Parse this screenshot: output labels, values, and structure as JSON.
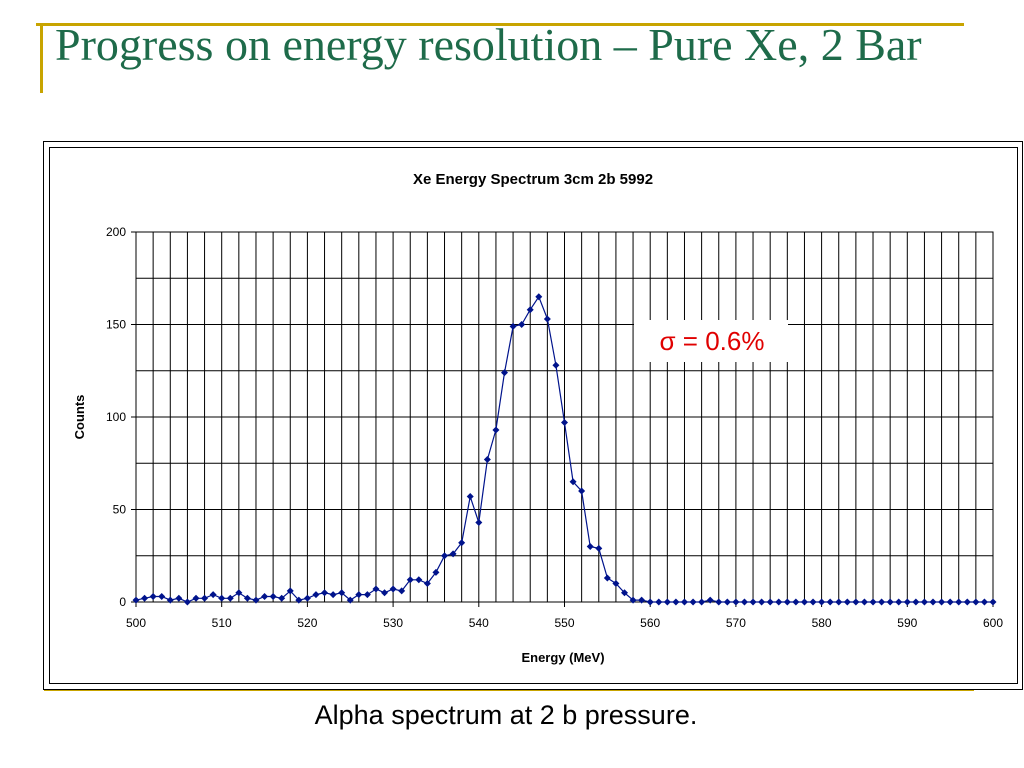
{
  "slide": {
    "title": "Progress on energy resolution – Pure Xe,  2 Bar",
    "caption": "Alpha spectrum at 2 b pressure."
  },
  "colors": {
    "title": "#1e6b4a",
    "accent_lines": "#c8a400",
    "series": "#00138c",
    "annotation": "#e00000"
  },
  "chart_data": {
    "type": "line",
    "title": "Xe   Energy Spectrum 3cm 2b 5992",
    "xlabel": "Energy (MeV)",
    "ylabel": "Counts",
    "xlim": [
      500,
      600
    ],
    "ylim": [
      0,
      200
    ],
    "xticks": [
      500,
      510,
      520,
      530,
      540,
      550,
      560,
      570,
      580,
      590,
      600
    ],
    "yticks": [
      0,
      50,
      100,
      150,
      200
    ],
    "grid": true,
    "annotation": "σ = 0.6%",
    "series": [
      {
        "marker": "diamond",
        "x": [
          500,
          501,
          502,
          503,
          504,
          505,
          506,
          507,
          508,
          509,
          510,
          511,
          512,
          513,
          514,
          515,
          516,
          517,
          518,
          519,
          520,
          521,
          522,
          523,
          524,
          525,
          526,
          527,
          528,
          529,
          530,
          531,
          532,
          533,
          534,
          535,
          536,
          537,
          538,
          539,
          540,
          541,
          542,
          543,
          544,
          545,
          546,
          547,
          548,
          549,
          550,
          551,
          552,
          553,
          554,
          555,
          556,
          557,
          558,
          559,
          560,
          561,
          562,
          563,
          564,
          565,
          566,
          567,
          568,
          569,
          570,
          571,
          572,
          573,
          574,
          575,
          576,
          577,
          578,
          579,
          580,
          581,
          582,
          583,
          584,
          585,
          586,
          587,
          588,
          589,
          590,
          591,
          592,
          593,
          594,
          595,
          596,
          597,
          598,
          599,
          600
        ],
        "y": [
          1,
          2,
          3,
          3,
          1,
          2,
          0,
          2,
          2,
          4,
          2,
          2,
          5,
          2,
          1,
          3,
          3,
          2,
          6,
          1,
          2,
          4,
          5,
          4,
          5,
          1,
          4,
          4,
          7,
          5,
          7,
          6,
          12,
          12,
          10,
          16,
          25,
          26,
          32,
          57,
          43,
          77,
          93,
          124,
          149,
          150,
          158,
          165,
          153,
          128,
          97,
          65,
          60,
          30,
          29,
          13,
          10,
          5,
          1,
          1,
          0,
          0,
          0,
          0,
          0,
          0,
          0,
          1,
          0,
          0,
          0,
          0,
          0,
          0,
          0,
          0,
          0,
          0,
          0,
          0,
          0,
          0,
          0,
          0,
          0,
          0,
          0,
          0,
          0,
          0,
          0,
          0,
          0,
          0,
          0,
          0,
          0,
          0,
          0,
          0,
          0
        ]
      }
    ]
  }
}
